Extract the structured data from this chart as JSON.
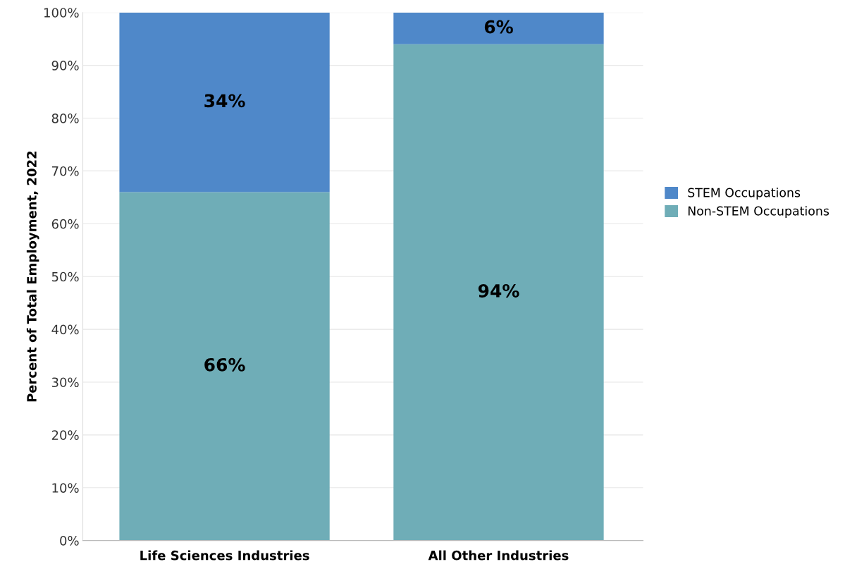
{
  "chart_data": {
    "type": "bar",
    "stacked": true,
    "ylabel": "Percent of Total Employment, 2022",
    "categories": [
      "Life Sciences Industries",
      "All Other Industries"
    ],
    "series": [
      {
        "name": "Non-STEM Occupations",
        "color": "#6fadb7",
        "values": [
          66,
          94
        ],
        "value_labels": [
          "66%",
          "94%"
        ]
      },
      {
        "name": "STEM Occupations",
        "color": "#4f88c9",
        "values": [
          34,
          6
        ],
        "value_labels": [
          "34%",
          "6%"
        ]
      }
    ],
    "ylim": [
      0,
      100
    ],
    "yticks": [
      {
        "value": 0,
        "label": "0%"
      },
      {
        "value": 10,
        "label": "10%"
      },
      {
        "value": 20,
        "label": "20%"
      },
      {
        "value": 30,
        "label": "30%"
      },
      {
        "value": 40,
        "label": "40%"
      },
      {
        "value": 50,
        "label": "50%"
      },
      {
        "value": 60,
        "label": "60%"
      },
      {
        "value": 70,
        "label": "70%"
      },
      {
        "value": 80,
        "label": "80%"
      },
      {
        "value": 90,
        "label": "90%"
      },
      {
        "value": 100,
        "label": "100%"
      }
    ],
    "grid": "y",
    "legend": "right"
  }
}
